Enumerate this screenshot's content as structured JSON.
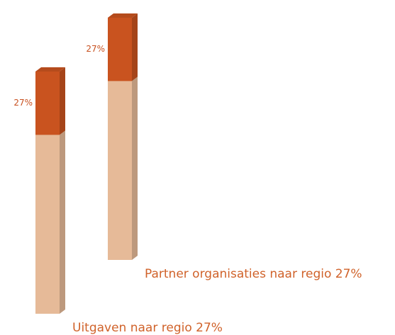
{
  "chart_data": {
    "type": "bar",
    "stacked": true,
    "categories": [
      "Uitgaven naar regio 27%",
      "Partner organisaties naar regio 27%"
    ],
    "series": [
      {
        "color": "#e6ba98",
        "values": [
          73,
          73
        ]
      },
      {
        "color": "#c9531f",
        "values": [
          27,
          27
        ],
        "value_labels": [
          "27%",
          "27%"
        ]
      }
    ]
  }
}
